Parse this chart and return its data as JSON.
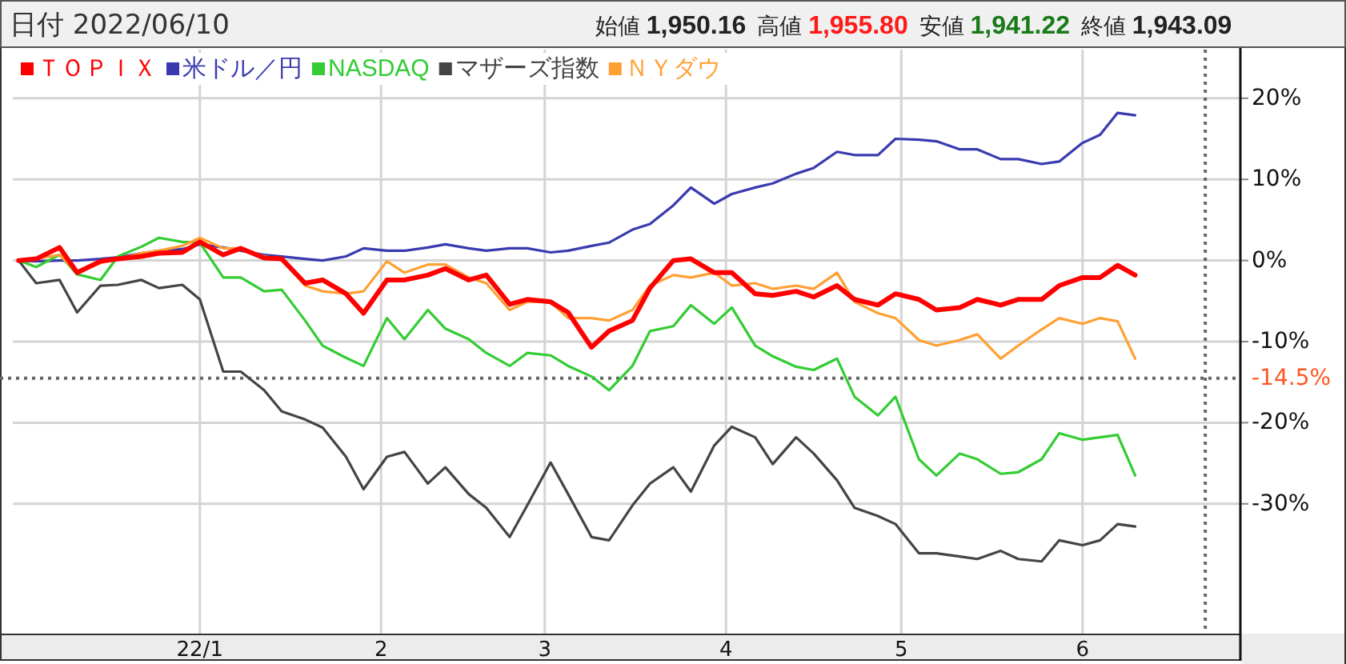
{
  "chart_data": {
    "type": "line",
    "title": "日付 2022/06/10",
    "annotations": [
      "始値 1,950.16",
      "高値 1,955.80",
      "安値 1,941.22",
      "終値 1,943.09"
    ],
    "x": [
      "2021-12-01",
      "2021-12-04",
      "2021-12-08",
      "2021-12-11",
      "2021-12-15",
      "2021-12-18",
      "2021-12-22",
      "2021-12-25",
      "2021-12-29",
      "2022-01-01",
      "2022-01-05",
      "2022-01-08",
      "2022-01-12",
      "2022-01-15",
      "2022-01-19",
      "2022-01-22",
      "2022-01-26",
      "2022-01-29",
      "2022-02-02",
      "2022-02-05",
      "2022-02-09",
      "2022-02-12",
      "2022-02-16",
      "2022-02-19",
      "2022-02-23",
      "2022-02-26",
      "2022-03-02",
      "2022-03-05",
      "2022-03-09",
      "2022-03-12",
      "2022-03-16",
      "2022-03-19",
      "2022-03-23",
      "2022-03-26",
      "2022-03-30",
      "2022-04-02",
      "2022-04-06",
      "2022-04-09",
      "2022-04-13",
      "2022-04-16",
      "2022-04-20",
      "2022-04-23",
      "2022-04-27",
      "2022-04-30",
      "2022-05-04",
      "2022-05-07",
      "2022-05-11",
      "2022-05-14",
      "2022-05-18",
      "2022-05-21",
      "2022-05-25",
      "2022-05-28",
      "2022-06-01",
      "2022-06-04",
      "2022-06-07",
      "2022-06-10"
    ],
    "series": [
      {
        "name": "ＴＯＰＩＸ",
        "color": "#ff0000",
        "values": [
          0,
          0.2,
          1.6,
          -1.5,
          -0.1,
          0.2,
          0.5,
          0.9,
          1.0,
          2.3,
          0.7,
          1.5,
          0.3,
          0.2,
          -2.8,
          -2.4,
          -4.1,
          -6.5,
          -2.4,
          -2.4,
          -1.8,
          -1.0,
          -2.4,
          -1.8,
          -5.4,
          -4.8,
          -5.1,
          -6.4,
          -10.7,
          -8.7,
          -7.4,
          -3.4,
          0,
          0.2,
          -1.5,
          -1.5,
          -4.1,
          -4.3,
          -3.8,
          -4.5,
          -3.1,
          -4.8,
          -5.5,
          -4.1,
          -4.8,
          -6.1,
          -5.8,
          -4.8,
          -5.5,
          -4.8,
          -4.8,
          -3.1,
          -2.1,
          -2.1,
          -0.6,
          -1.8
        ]
      },
      {
        "name": "米ドル／円",
        "color": "#3a3ab0",
        "values": [
          0,
          -0.1,
          0,
          0,
          0.2,
          0.4,
          0.9,
          1.2,
          1.4,
          2.0,
          1.6,
          1.2,
          0.7,
          0.5,
          0.2,
          0,
          0.5,
          1.5,
          1.2,
          1.2,
          1.6,
          2.0,
          1.5,
          1.2,
          1.5,
          1.5,
          1.0,
          1.2,
          1.8,
          2.2,
          3.8,
          4.5,
          6.8,
          9.0,
          7.0,
          8.2,
          9.0,
          9.5,
          10.7,
          11.4,
          13.4,
          13.0,
          13.0,
          15.0,
          14.9,
          14.7,
          13.7,
          13.7,
          12.5,
          12.5,
          11.9,
          12.2,
          14.5,
          15.5,
          18.2,
          17.9
        ]
      },
      {
        "name": "NASDAQ",
        "color": "#33cc33",
        "values": [
          0,
          -0.8,
          0.7,
          -1.7,
          -2.4,
          0.5,
          1.7,
          2.8,
          2.3,
          2.2,
          -2.1,
          -2.1,
          -3.8,
          -3.6,
          -7.4,
          -10.5,
          -12.0,
          -13.0,
          -7.1,
          -9.7,
          -6.1,
          -8.4,
          -9.7,
          -11.4,
          -13.0,
          -11.4,
          -11.7,
          -13.0,
          -14.3,
          -16.0,
          -13.0,
          -8.7,
          -8.1,
          -5.5,
          -7.8,
          -5.8,
          -10.5,
          -11.8,
          -13.1,
          -13.5,
          -12.1,
          -16.8,
          -19.1,
          -16.8,
          -24.5,
          -26.5,
          -23.8,
          -24.5,
          -26.3,
          -26.1,
          -24.5,
          -21.3,
          -22.1,
          -21.8,
          -21.5,
          -26.5
        ]
      },
      {
        "name": "マザーズ指数",
        "color": "#444444",
        "values": [
          0,
          -2.8,
          -2.4,
          -6.4,
          -3.1,
          -3.0,
          -2.4,
          -3.4,
          -3.0,
          -4.8,
          -13.7,
          -13.7,
          -16.0,
          -18.6,
          -19.6,
          -20.6,
          -24.2,
          -28.2,
          -24.2,
          -23.6,
          -27.5,
          -25.5,
          -28.8,
          -30.5,
          -34.1,
          -30.2,
          -24.9,
          -28.8,
          -34.1,
          -34.5,
          -30.2,
          -27.5,
          -25.5,
          -28.5,
          -22.8,
          -20.5,
          -21.8,
          -25.1,
          -21.8,
          -23.8,
          -27.1,
          -30.5,
          -31.5,
          -32.5,
          -36.1,
          -36.1,
          -36.5,
          -36.8,
          -35.8,
          -36.8,
          -37.1,
          -34.5,
          -35.1,
          -34.5,
          -32.5,
          -32.8
        ]
      },
      {
        "name": "ＮＹダウ",
        "color": "#ffa033",
        "values": [
          0,
          0.2,
          0.7,
          -1.5,
          -0.3,
          0.2,
          0.9,
          1.2,
          1.8,
          2.8,
          1.5,
          1.5,
          0.5,
          0.2,
          -3.1,
          -3.8,
          -4.1,
          -3.8,
          -0.1,
          -1.5,
          -0.5,
          -0.5,
          -2.1,
          -2.8,
          -6.1,
          -5.1,
          -5.1,
          -7.1,
          -7.1,
          -7.4,
          -6.1,
          -3.1,
          -1.8,
          -2.1,
          -1.5,
          -3.1,
          -2.8,
          -3.5,
          -3.1,
          -3.5,
          -1.5,
          -5.1,
          -6.5,
          -7.1,
          -9.8,
          -10.5,
          -9.8,
          -9.1,
          -12.1,
          -10.5,
          -8.5,
          -7.1,
          -7.8,
          -7.1,
          -7.5,
          -12.1
        ]
      }
    ],
    "xlim": [
      "2021-11-30",
      "2022-06-28"
    ],
    "xticks": [
      {
        "value": "2022-01-01",
        "label": "22/1"
      },
      {
        "value": "2022-02-01",
        "label": "2"
      },
      {
        "value": "2022-03-01",
        "label": "3"
      },
      {
        "value": "2022-04-01",
        "label": "4"
      },
      {
        "value": "2022-05-01",
        "label": "5"
      },
      {
        "value": "2022-06-01",
        "label": "6"
      }
    ],
    "ylim": [
      -46,
      26
    ],
    "yticks": [
      {
        "value": 20,
        "label": "20%"
      },
      {
        "value": 10,
        "label": "10%"
      },
      {
        "value": 0,
        "label": "0%"
      },
      {
        "value": -10,
        "label": "-10%"
      },
      {
        "value": -20,
        "label": "-20%"
      },
      {
        "value": -30,
        "label": "-30%"
      }
    ],
    "ref_lines": [
      {
        "axis": "y",
        "value": -14.5,
        "label": "-14.5%",
        "color": "#666666",
        "line_style": "dotted"
      },
      {
        "axis": "x",
        "value": "2022-06-22",
        "color": "#666666",
        "line_style": "dotted"
      }
    ],
    "grid": true,
    "legend": "top left",
    "marker": "none",
    "line_style": "solid"
  }
}
